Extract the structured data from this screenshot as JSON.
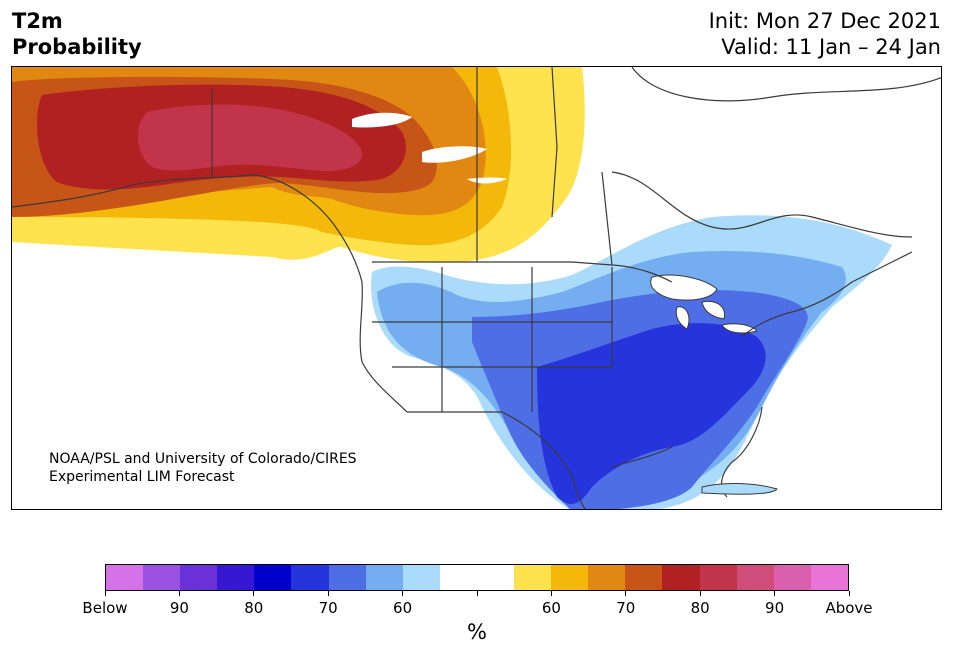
{
  "header": {
    "title_line1": "T2m",
    "title_line2": "Probability",
    "init": "Init: Mon 27 Dec 2021",
    "valid": "Valid: 11 Jan – 24 Jan"
  },
  "credit": {
    "line1": "NOAA/PSL and University of Colorado/CIRES",
    "line2": "Experimental LIM Forecast"
  },
  "colorbar": {
    "unit": "%",
    "colors": [
      "#d672e8",
      "#9a52e0",
      "#6a32d6",
      "#3718d2",
      "#0000cc",
      "#2634dc",
      "#4e6ee6",
      "#74aef0",
      "#abdbfa",
      "#ffffff",
      "#ffffff",
      "#fee34e",
      "#f4b80b",
      "#e08812",
      "#c75517",
      "#b12122",
      "#c13449",
      "#d04c7a",
      "#da5fae",
      "#e874d8"
    ],
    "tick_labels": [
      "Below",
      "90",
      "80",
      "70",
      "60",
      "",
      "60",
      "70",
      "80",
      "90",
      "Above"
    ]
  },
  "map": {
    "categories": [
      "below-90",
      "below-80",
      "below-70",
      "below-60",
      "near-normal",
      "above-60",
      "above-70",
      "above-80",
      "above-90"
    ],
    "colors": {
      "above_60": "#fee34e",
      "above_70": "#f4b80b",
      "above_75": "#e08812",
      "above_80": "#c75517",
      "above_85": "#b12122",
      "above_90": "#c13449",
      "below_60": "#abdbfa",
      "below_65": "#74aef0",
      "below_70": "#4e6ee6",
      "below_75": "#2634dc",
      "lakes": "#ffffff",
      "border": "#3a3a3a"
    }
  }
}
